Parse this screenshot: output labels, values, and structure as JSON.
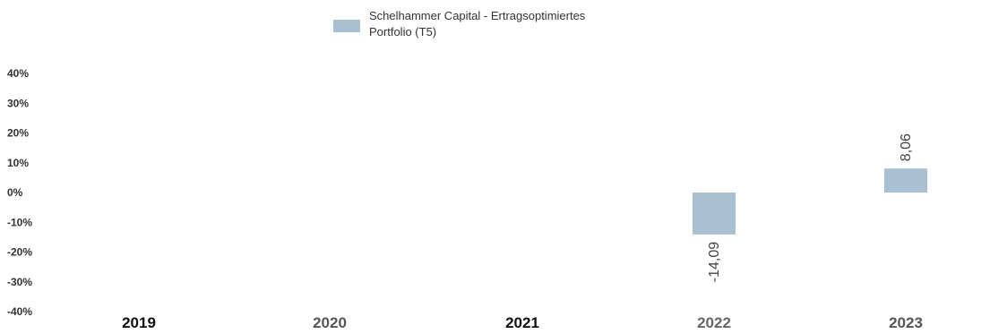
{
  "chart_data": {
    "type": "bar",
    "categories": [
      "2019",
      "2020",
      "2021",
      "2022",
      "2023"
    ],
    "series": [
      {
        "name": "Schelhammer Capital - Ertragsoptimiertes Portfolio (T5)",
        "values": [
          null,
          null,
          null,
          -14.09,
          8.06
        ],
        "value_labels": [
          "",
          "",
          "",
          "-14,09",
          "8,06"
        ],
        "color": "#a9c0d3"
      }
    ],
    "legend": {
      "line1": "Schelhammer Capital - Ertragsoptimiertes",
      "line2": "Portfolio (T5)",
      "position": "top-center"
    },
    "yticks": [
      40,
      30,
      20,
      10,
      0,
      -10,
      -20,
      -30,
      -40
    ],
    "ytick_labels": [
      "40%",
      "30%",
      "20%",
      "10%",
      "0%",
      "-10%",
      "-20%",
      "-30%",
      "-40%"
    ],
    "ylim": [
      -40,
      40
    ],
    "grid": false,
    "xtick_colors": [
      "#111111",
      "#555555",
      "#111111",
      "#666666",
      "#555555"
    ]
  }
}
